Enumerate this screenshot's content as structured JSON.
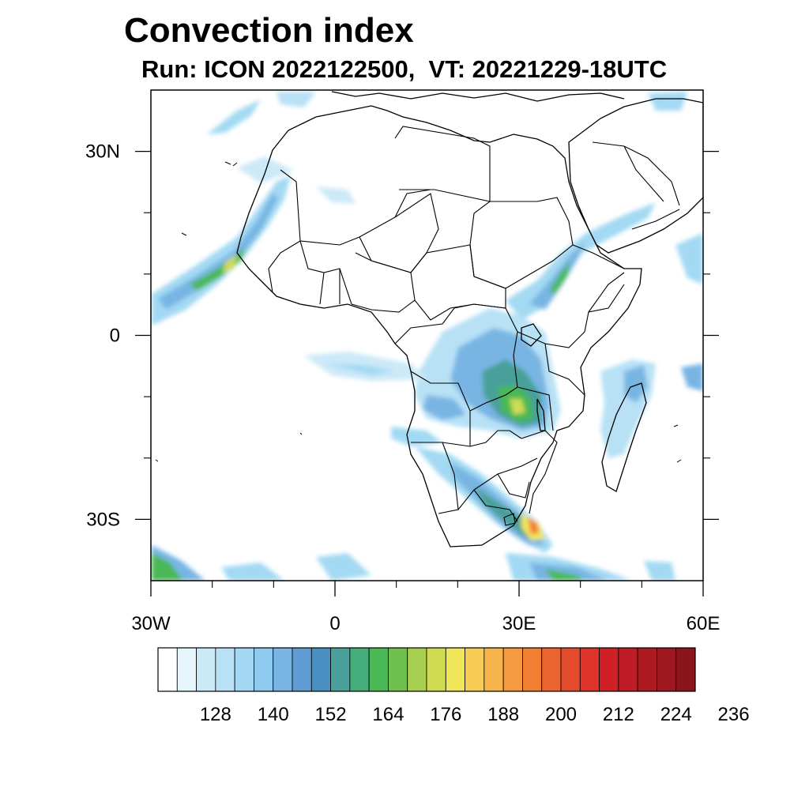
{
  "header": {
    "title": "Convection index",
    "subtitle": "Run: ICON 2022122500,  VT: 20221229-18UTC"
  },
  "map": {
    "lon_range": [
      -30,
      60
    ],
    "lat_range": [
      -40,
      40
    ],
    "ocean_color": "#ffffff",
    "coast_color": "#000000",
    "x_axis": {
      "ticks": [
        -30,
        0,
        30,
        60
      ],
      "tick_labels": [
        "30W",
        "0",
        "30E",
        "60E"
      ],
      "minor_ticks": [
        -20,
        -10,
        10,
        20,
        40,
        50
      ]
    },
    "y_axis": {
      "ticks": [
        30,
        0,
        -30
      ],
      "tick_labels": [
        "30N",
        "0",
        "30S"
      ],
      "minor_ticks": [
        20,
        10,
        -10,
        -20
      ]
    }
  },
  "colorbar": {
    "labels": [
      "128",
      "140",
      "152",
      "164",
      "176",
      "188",
      "200",
      "212",
      "224",
      "236"
    ],
    "colors": [
      "#ffffff",
      "#e6f4fc",
      "#cce9f8",
      "#b8e1f6",
      "#a3d9f3",
      "#8ecbee",
      "#78b5e3",
      "#5e9cd3",
      "#4a8fc2",
      "#4aa09a",
      "#45ad7a",
      "#4ab855",
      "#6fc04d",
      "#a6ce4f",
      "#cfdc52",
      "#f0e65a",
      "#f8cc55",
      "#f8b44c",
      "#f59a40",
      "#f07f33",
      "#eb6530",
      "#e44a2c",
      "#dd3329",
      "#d02026",
      "#bf1c25",
      "#ae1a22",
      "#9e181f",
      "#8a161c"
    ]
  }
}
